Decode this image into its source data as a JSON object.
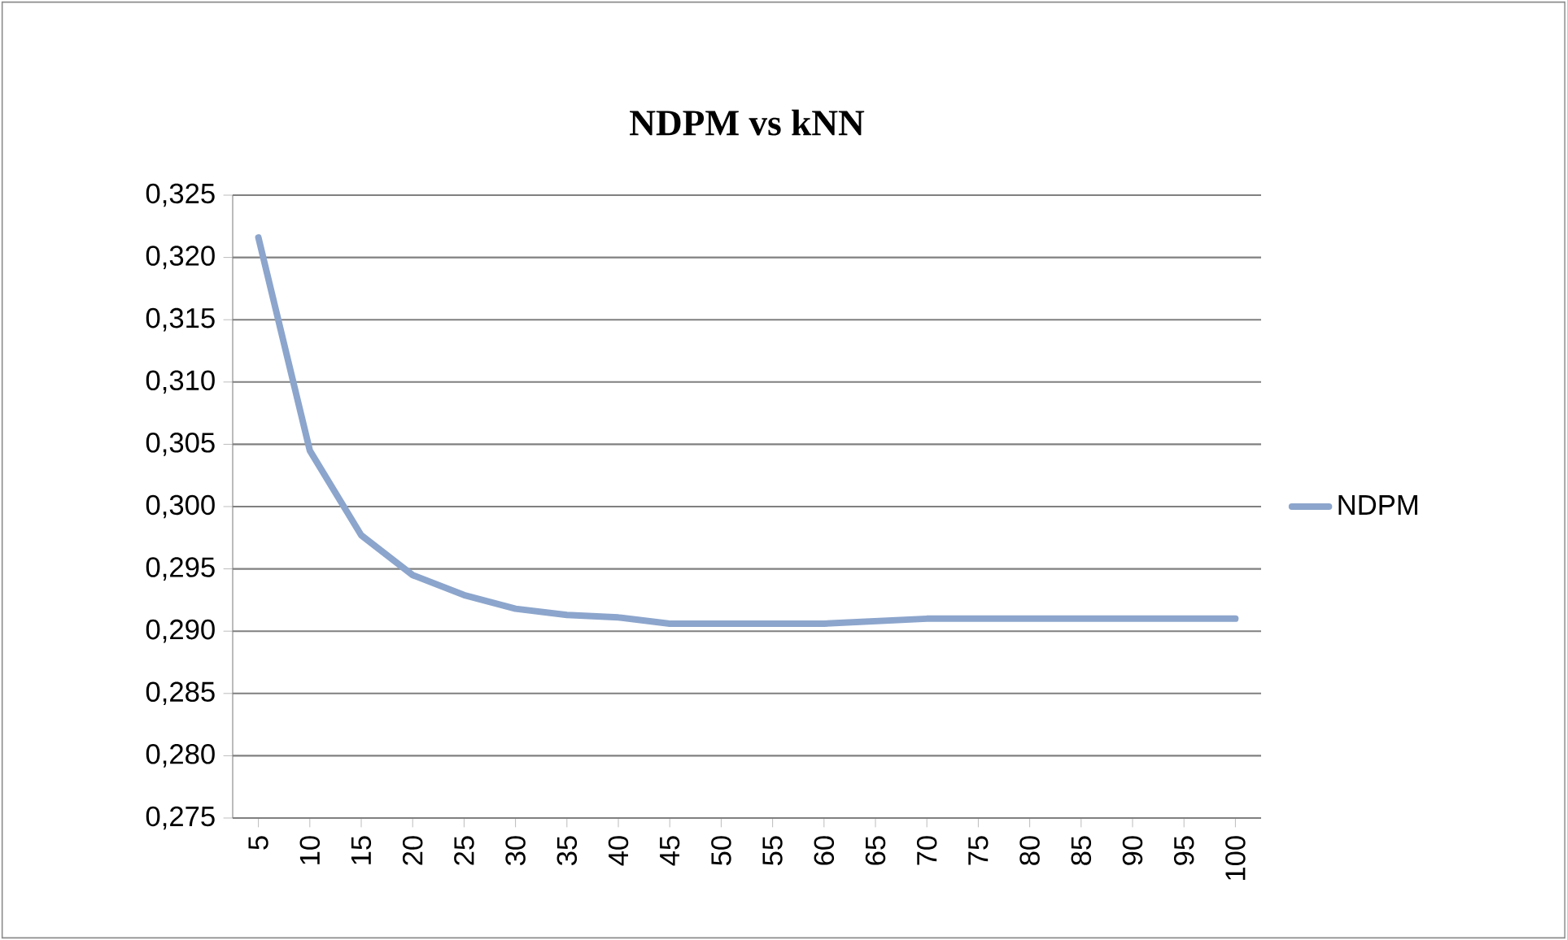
{
  "chart_data": {
    "type": "line",
    "title": "NDPM vs kNN",
    "categories": [
      "5",
      "10",
      "15",
      "20",
      "25",
      "30",
      "35",
      "40",
      "45",
      "50",
      "55",
      "60",
      "65",
      "70",
      "75",
      "80",
      "85",
      "90",
      "95",
      "100"
    ],
    "series": [
      {
        "name": "NDPM",
        "color": "#8ca5cc",
        "values": [
          0.3216,
          0.3045,
          0.2977,
          0.2945,
          0.2929,
          0.2918,
          0.2913,
          0.2911,
          0.2906,
          0.2906,
          0.2906,
          0.2906,
          0.2908,
          0.291,
          0.291,
          0.291,
          0.291,
          0.291,
          0.291,
          0.291
        ]
      }
    ],
    "ylim": [
      0.275,
      0.325
    ],
    "yticks": [
      {
        "value": 0.275,
        "label": "0,275"
      },
      {
        "value": 0.28,
        "label": "0,280"
      },
      {
        "value": 0.285,
        "label": "0,285"
      },
      {
        "value": 0.29,
        "label": "0,290"
      },
      {
        "value": 0.295,
        "label": "0,295"
      },
      {
        "value": 0.3,
        "label": "0,300"
      },
      {
        "value": 0.305,
        "label": "0,305"
      },
      {
        "value": 0.31,
        "label": "0,310"
      },
      {
        "value": 0.315,
        "label": "0,315"
      },
      {
        "value": 0.32,
        "label": "0,320"
      },
      {
        "value": 0.325,
        "label": "0,325"
      }
    ],
    "grid": "y",
    "legend": "right",
    "marker": "none",
    "line_style": "solid"
  }
}
